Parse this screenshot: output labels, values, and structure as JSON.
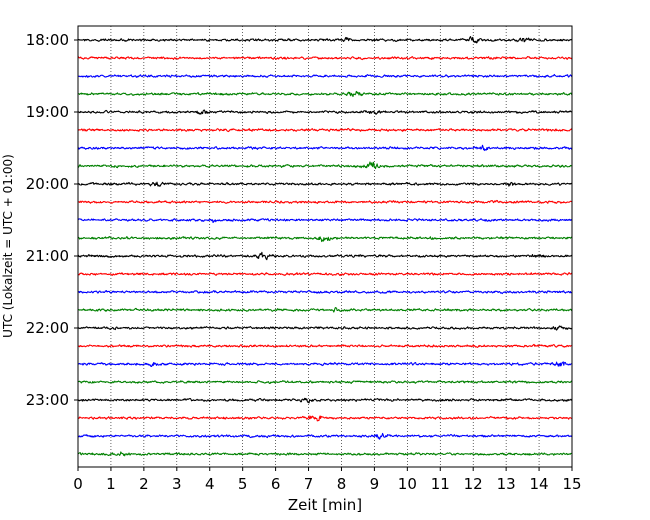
{
  "chart_data": {
    "type": "line",
    "subtype": "helicorder seismogram",
    "xlabel": "Zeit  [min]",
    "ylabel": "UTC (Lokalzeit = UTC + 01:00)",
    "xlim": [
      0,
      15
    ],
    "xticks": [
      "0",
      "1",
      "2",
      "3",
      "4",
      "5",
      "6",
      "7",
      "8",
      "9",
      "10",
      "11",
      "12",
      "13",
      "14",
      "15"
    ],
    "hour_labels": [
      "18:00",
      "19:00",
      "20:00",
      "21:00",
      "22:00",
      "23:00"
    ],
    "trace_interval_min": 15,
    "trace_count": 24,
    "trace_colors": [
      "#000000",
      "#ff0000",
      "#0000ff",
      "#008000"
    ],
    "vertical_grid": "dotted, every 1 min",
    "events": [
      {
        "trace": 0,
        "t": 8.1,
        "amp": 1.6
      },
      {
        "trace": 0,
        "t": 12.0,
        "amp": 1.8
      },
      {
        "trace": 0,
        "t": 13.5,
        "amp": 1.8
      },
      {
        "trace": 3,
        "t": 8.4,
        "amp": 1.8
      },
      {
        "trace": 4,
        "t": 3.8,
        "amp": 1.8
      },
      {
        "trace": 4,
        "t": 9.0,
        "amp": 1.7
      },
      {
        "trace": 6,
        "t": 12.3,
        "amp": 1.6
      },
      {
        "trace": 7,
        "t": 8.9,
        "amp": 2.6
      },
      {
        "trace": 8,
        "t": 2.4,
        "amp": 1.7
      },
      {
        "trace": 8,
        "t": 13.1,
        "amp": 1.6
      },
      {
        "trace": 10,
        "t": 4.1,
        "amp": 1.7
      },
      {
        "trace": 11,
        "t": 7.5,
        "amp": 2.4
      },
      {
        "trace": 12,
        "t": 5.6,
        "amp": 2.0
      },
      {
        "trace": 12,
        "t": 14.0,
        "amp": 1.5
      },
      {
        "trace": 15,
        "t": 7.9,
        "amp": 1.6
      },
      {
        "trace": 16,
        "t": 14.6,
        "amp": 1.7
      },
      {
        "trace": 18,
        "t": 2.3,
        "amp": 1.5
      },
      {
        "trace": 18,
        "t": 14.6,
        "amp": 1.8
      },
      {
        "trace": 20,
        "t": 7.0,
        "amp": 1.8
      },
      {
        "trace": 21,
        "t": 7.2,
        "amp": 2.2
      },
      {
        "trace": 22,
        "t": 9.2,
        "amp": 1.8
      },
      {
        "trace": 23,
        "t": 1.3,
        "amp": 1.6
      }
    ]
  }
}
